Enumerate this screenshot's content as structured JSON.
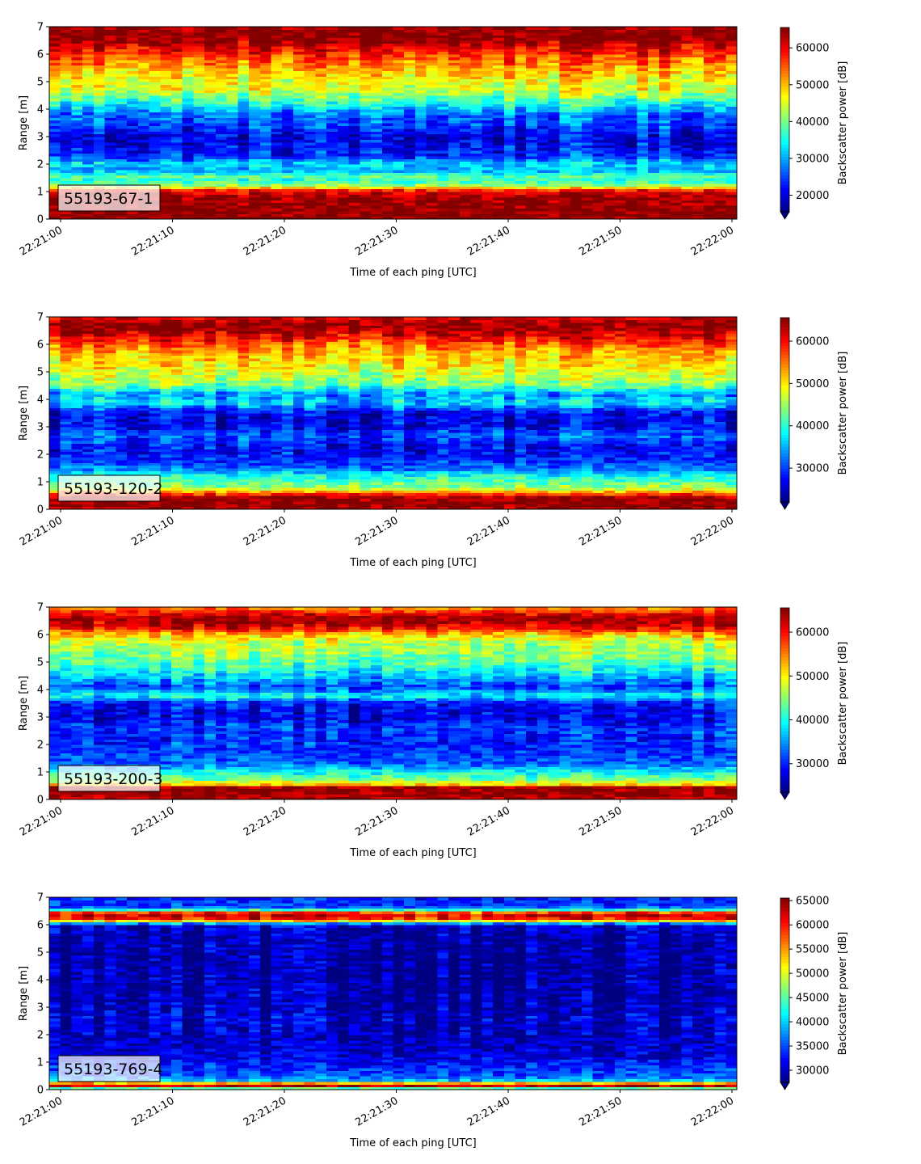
{
  "chart_data": [
    {
      "type": "heatmap",
      "label": "55193-67-1",
      "xlabel": "Time of each ping [UTC]",
      "ylabel": "Range [m]",
      "x_range": [
        "22:21:00",
        "22:22:00"
      ],
      "ylim": [
        0,
        7
      ],
      "x_ticks": [
        "22:21:00",
        "22:21:10",
        "22:21:20",
        "22:21:30",
        "22:21:40",
        "22:21:50",
        "22:22:00"
      ],
      "y_ticks": [
        "0",
        "1",
        "2",
        "3",
        "4",
        "5",
        "6",
        "7"
      ],
      "colorbar": {
        "label": "Backscatter power [dB]",
        "min": 15500,
        "max": 65535,
        "ticks": [
          "20000",
          "30000",
          "40000",
          "50000",
          "60000"
        ],
        "extend": "min"
      },
      "profile": [
        [
          0.0,
          65500
        ],
        [
          0.2,
          65500
        ],
        [
          0.6,
          64500
        ],
        [
          0.9,
          63000
        ],
        [
          1.05,
          58000
        ],
        [
          1.2,
          44000
        ],
        [
          1.4,
          36000
        ],
        [
          1.55,
          38500
        ],
        [
          1.8,
          30000
        ],
        [
          2.0,
          33000
        ],
        [
          2.3,
          24000
        ],
        [
          2.6,
          22000
        ],
        [
          3.0,
          20500
        ],
        [
          3.4,
          25000
        ],
        [
          3.8,
          27000
        ],
        [
          4.1,
          33000
        ],
        [
          4.4,
          39000
        ],
        [
          4.7,
          45000
        ],
        [
          5.1,
          47000
        ],
        [
          5.5,
          51000
        ],
        [
          5.9,
          56000
        ],
        [
          6.2,
          60000
        ],
        [
          6.5,
          64500
        ],
        [
          6.85,
          65500
        ],
        [
          7.0,
          63500
        ]
      ]
    },
    {
      "type": "heatmap",
      "label": "55193-120-2",
      "xlabel": "Time of each ping [UTC]",
      "ylabel": "Range [m]",
      "x_range": [
        "22:21:00",
        "22:22:00"
      ],
      "ylim": [
        0,
        7
      ],
      "x_ticks": [
        "22:21:00",
        "22:21:10",
        "22:21:20",
        "22:21:30",
        "22:21:40",
        "22:21:50",
        "22:22:00"
      ],
      "y_ticks": [
        "0",
        "1",
        "2",
        "3",
        "4",
        "5",
        "6",
        "7"
      ],
      "colorbar": {
        "label": "Backscatter power [dB]",
        "min": 22000,
        "max": 65535,
        "ticks": [
          "30000",
          "40000",
          "50000",
          "60000"
        ],
        "extend": "min"
      },
      "profile": [
        [
          0.0,
          63000
        ],
        [
          0.15,
          65500
        ],
        [
          0.45,
          64000
        ],
        [
          0.6,
          55000
        ],
        [
          0.8,
          45000
        ],
        [
          1.0,
          42000
        ],
        [
          1.2,
          40000
        ],
        [
          1.45,
          33000
        ],
        [
          1.8,
          29000
        ],
        [
          2.2,
          27000
        ],
        [
          2.7,
          31000
        ],
        [
          3.0,
          27000
        ],
        [
          3.5,
          26500
        ],
        [
          3.9,
          37000
        ],
        [
          4.2,
          33000
        ],
        [
          4.5,
          43000
        ],
        [
          4.9,
          47000
        ],
        [
          5.3,
          50000
        ],
        [
          5.7,
          52000
        ],
        [
          6.0,
          56000
        ],
        [
          6.3,
          61000
        ],
        [
          6.6,
          64500
        ],
        [
          6.8,
          64500
        ],
        [
          7.0,
          61000
        ]
      ]
    },
    {
      "type": "heatmap",
      "label": "55193-200-3",
      "xlabel": "Time of each ping [UTC]",
      "ylabel": "Range [m]",
      "x_range": [
        "22:21:00",
        "22:22:00"
      ],
      "ylim": [
        0,
        7
      ],
      "x_ticks": [
        "22:21:00",
        "22:21:10",
        "22:21:20",
        "22:21:30",
        "22:21:40",
        "22:21:50",
        "22:22:00"
      ],
      "y_ticks": [
        "0",
        "1",
        "2",
        "3",
        "4",
        "5",
        "6",
        "7"
      ],
      "colorbar": {
        "label": "Backscatter power [dB]",
        "min": 23500,
        "max": 65535,
        "ticks": [
          "30000",
          "40000",
          "50000",
          "60000"
        ],
        "extend": "min"
      },
      "profile": [
        [
          0.0,
          62000
        ],
        [
          0.1,
          64500
        ],
        [
          0.45,
          64500
        ],
        [
          0.55,
          52000
        ],
        [
          0.75,
          44000
        ],
        [
          1.0,
          40000
        ],
        [
          1.3,
          33000
        ],
        [
          1.7,
          31000
        ],
        [
          2.2,
          30000
        ],
        [
          2.6,
          31000
        ],
        [
          3.0,
          28000
        ],
        [
          3.5,
          29000
        ],
        [
          3.8,
          40000
        ],
        [
          4.1,
          31000
        ],
        [
          4.5,
          37000
        ],
        [
          4.9,
          42000
        ],
        [
          5.3,
          45000
        ],
        [
          5.7,
          47000
        ],
        [
          6.0,
          52000
        ],
        [
          6.3,
          62000
        ],
        [
          6.6,
          65000
        ],
        [
          6.8,
          60000
        ],
        [
          7.0,
          54000
        ]
      ]
    },
    {
      "type": "heatmap",
      "label": "55193-769-4",
      "xlabel": "Time of each ping [UTC]",
      "ylabel": "Range [m]",
      "x_range": [
        "22:21:00",
        "22:22:00"
      ],
      "ylim": [
        0,
        7
      ],
      "x_ticks": [
        "22:21:00",
        "22:21:10",
        "22:21:20",
        "22:21:30",
        "22:21:40",
        "22:21:50",
        "22:22:00"
      ],
      "y_ticks": [
        "0",
        "1",
        "2",
        "3",
        "4",
        "5",
        "6",
        "7"
      ],
      "colorbar": {
        "label": "Backscatter power [dB]",
        "min": 27500,
        "max": 65535,
        "ticks": [
          "30000",
          "35000",
          "40000",
          "45000",
          "50000",
          "55000",
          "60000",
          "65000"
        ],
        "extend": "min"
      },
      "profile": [
        [
          0.0,
          31000
        ],
        [
          0.12,
          64000
        ],
        [
          0.22,
          60000
        ],
        [
          0.32,
          40000
        ],
        [
          0.5,
          35000
        ],
        [
          0.8,
          34000
        ],
        [
          1.2,
          31000
        ],
        [
          1.6,
          30000
        ],
        [
          2.2,
          29500
        ],
        [
          2.6,
          30500
        ],
        [
          3.0,
          29000
        ],
        [
          4.0,
          28500
        ],
        [
          5.0,
          28500
        ],
        [
          5.6,
          29000
        ],
        [
          6.0,
          30500
        ],
        [
          6.15,
          52000
        ],
        [
          6.3,
          64000
        ],
        [
          6.45,
          58000
        ],
        [
          6.6,
          36000
        ],
        [
          6.8,
          34000
        ],
        [
          7.0,
          33000
        ]
      ]
    }
  ]
}
